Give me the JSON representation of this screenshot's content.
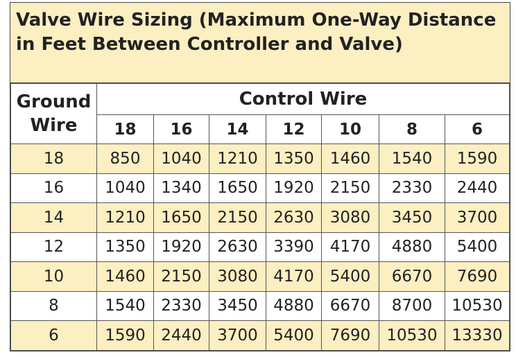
{
  "title": "Valve Wire Sizing (Maximum One-Way Distance in Feet Between Controller and Valve)",
  "table": {
    "corner": "Ground Wire",
    "group_header": "Control Wire",
    "columns": [
      "18",
      "16",
      "14",
      "12",
      "10",
      "8",
      "6"
    ],
    "rows": [
      {
        "label": "18",
        "values": [
          850,
          1040,
          1210,
          1350,
          1460,
          1540,
          1590
        ]
      },
      {
        "label": "16",
        "values": [
          1040,
          1340,
          1650,
          1920,
          2150,
          2330,
          2440
        ]
      },
      {
        "label": "14",
        "values": [
          1210,
          1650,
          2150,
          2630,
          3080,
          3450,
          3700
        ]
      },
      {
        "label": "12",
        "values": [
          1350,
          1920,
          2630,
          3390,
          4170,
          4880,
          5400
        ]
      },
      {
        "label": "10",
        "values": [
          1460,
          2150,
          3080,
          4170,
          5400,
          6670,
          7690
        ]
      },
      {
        "label": "8",
        "values": [
          1540,
          2330,
          3450,
          4880,
          6670,
          8700,
          10530
        ]
      },
      {
        "label": "6",
        "values": [
          1590,
          2440,
          3700,
          5400,
          7690,
          10530,
          13330
        ]
      }
    ]
  }
}
